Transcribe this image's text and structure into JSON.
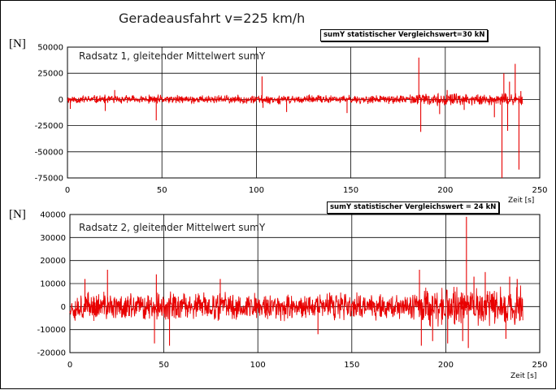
{
  "title": "Geradeausfahrt  v=225 km/h",
  "colors": {
    "signal": "#e80000",
    "grid": "#000000",
    "background": "#ffffff"
  },
  "chart_data": [
    {
      "type": "line",
      "label": "Radsatz 1, gleitender Mittelwert  sumY",
      "badge": "sumY  statistischer Vergleichswert=30 kN",
      "y_unit": "[N]",
      "xlabel": "Zeit [s]",
      "xlim": [
        0,
        250
      ],
      "ylim": [
        -75000,
        50000
      ],
      "x_ticks": [
        "0",
        "50",
        "100",
        "150",
        "200",
        "250"
      ],
      "y_ticks": [
        "50000",
        "25000",
        "0",
        "-25000",
        "-50000",
        "-75000"
      ],
      "grid": true,
      "series": [
        {
          "base_amplitude": 4000,
          "x_end": 241,
          "spikes": [
            {
              "x": 1.5,
              "y": -9000
            },
            {
              "x": 20,
              "y": -11000
            },
            {
              "x": 25,
              "y": 9000
            },
            {
              "x": 47,
              "y": -20000
            },
            {
              "x": 103,
              "y": 22000
            },
            {
              "x": 103.5,
              "y": -8000
            },
            {
              "x": 116,
              "y": -12000
            },
            {
              "x": 148,
              "y": -13000
            },
            {
              "x": 186,
              "y": 40000
            },
            {
              "x": 187,
              "y": -31000
            },
            {
              "x": 197,
              "y": -14000
            },
            {
              "x": 201,
              "y": 9000
            },
            {
              "x": 210,
              "y": -10000
            },
            {
              "x": 226,
              "y": -17000
            },
            {
              "x": 230,
              "y": -75000
            },
            {
              "x": 231,
              "y": 25000
            },
            {
              "x": 233,
              "y": -30000
            },
            {
              "x": 234,
              "y": 17000
            },
            {
              "x": 237,
              "y": 34000
            },
            {
              "x": 239,
              "y": -67000
            },
            {
              "x": 240,
              "y": 8000
            }
          ]
        }
      ]
    },
    {
      "type": "line",
      "label": "Radsatz 2, gleitender Mittelwert sumY",
      "badge": "sumY statistischer Vergleichswert = 24 kN",
      "y_unit": "[N]",
      "xlabel": "Zeit [s]",
      "xlim": [
        0,
        250
      ],
      "ylim": [
        -20000,
        40000
      ],
      "x_ticks": [
        "0",
        "50",
        "100",
        "150",
        "200",
        "250"
      ],
      "y_ticks": [
        "40000",
        "30000",
        "20000",
        "10000",
        "0",
        "-10000",
        "-20000"
      ],
      "grid": true,
      "series": [
        {
          "base_amplitude": 6000,
          "x_end": 241,
          "spikes": [
            {
              "x": 8,
              "y": 12000
            },
            {
              "x": 20,
              "y": 16000
            },
            {
              "x": 45,
              "y": -16000
            },
            {
              "x": 46,
              "y": 14000
            },
            {
              "x": 53,
              "y": -17000
            },
            {
              "x": 80,
              "y": 12000
            },
            {
              "x": 132,
              "y": -12000
            },
            {
              "x": 186,
              "y": 16000
            },
            {
              "x": 187,
              "y": -17000
            },
            {
              "x": 193,
              "y": -15000
            },
            {
              "x": 201,
              "y": -16000
            },
            {
              "x": 209,
              "y": -15000
            },
            {
              "x": 211,
              "y": 39000
            },
            {
              "x": 212,
              "y": -18000
            },
            {
              "x": 215,
              "y": 13000
            },
            {
              "x": 221,
              "y": 15000
            },
            {
              "x": 232,
              "y": -14000
            },
            {
              "x": 234,
              "y": 13000
            },
            {
              "x": 238,
              "y": 12000
            }
          ]
        }
      ]
    }
  ]
}
